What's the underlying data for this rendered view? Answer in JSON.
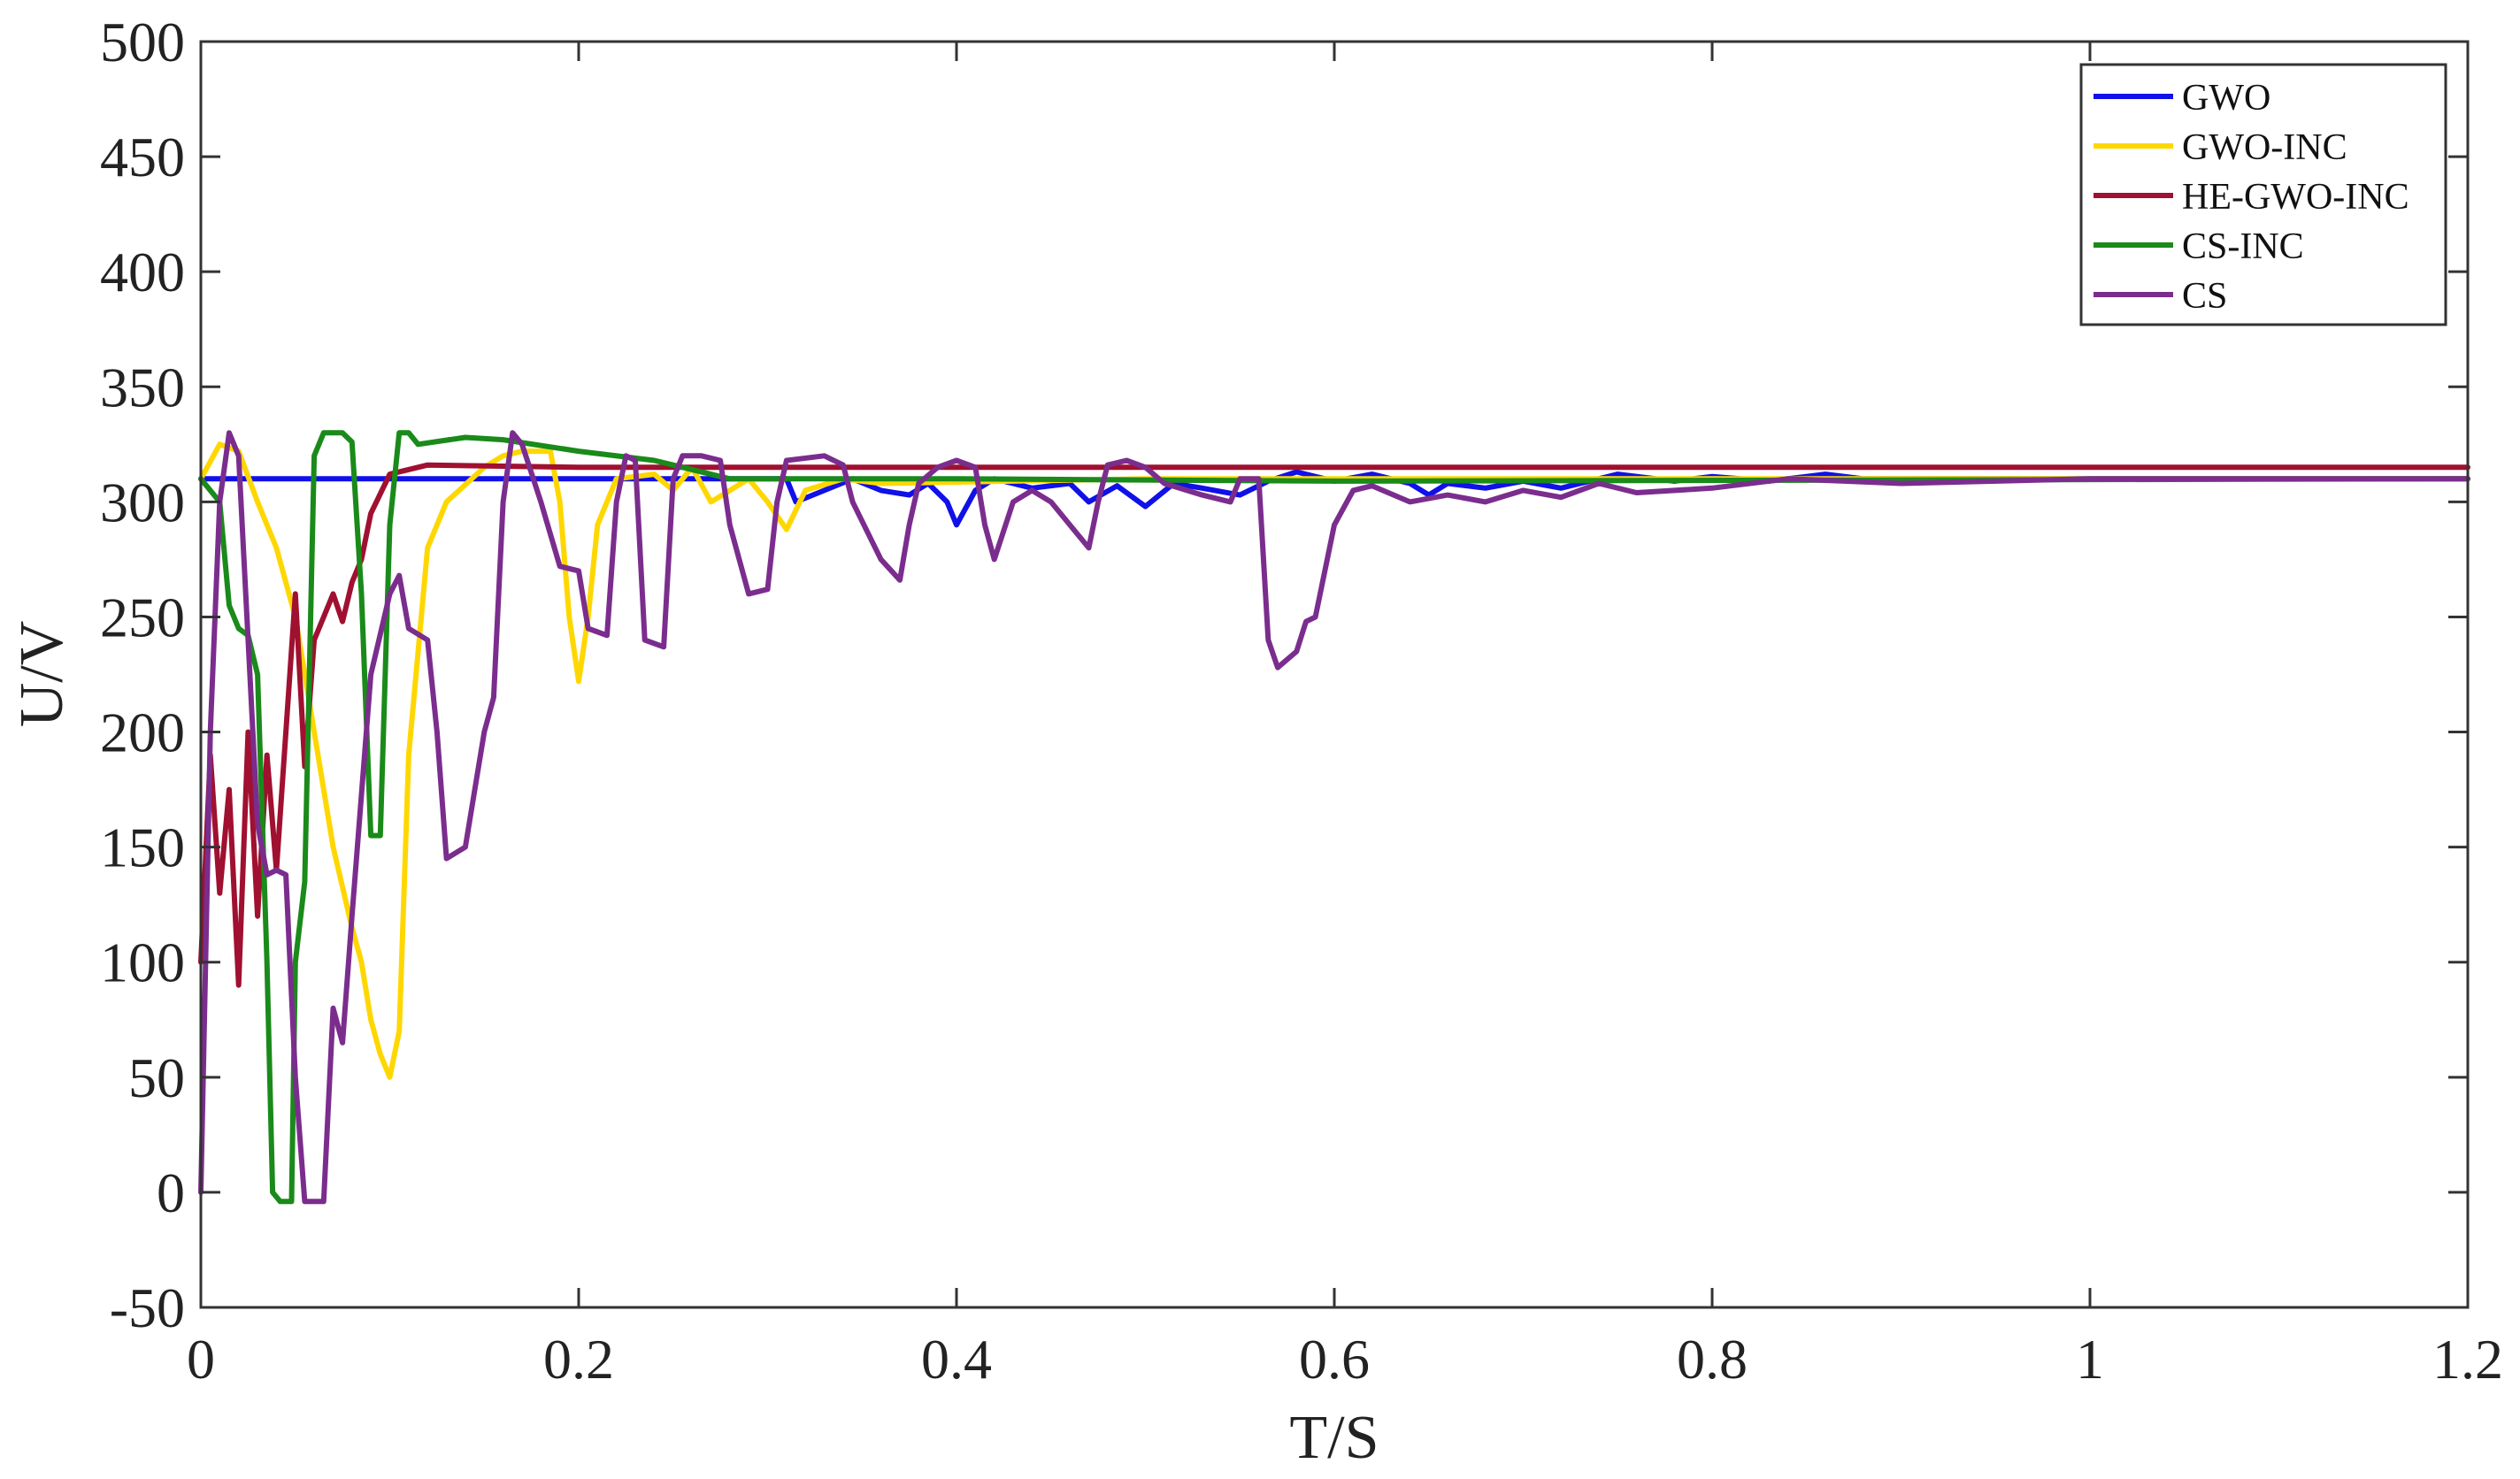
{
  "chart_data": {
    "type": "line",
    "xlabel": "T/S",
    "ylabel": "U/V",
    "xlim": [
      0,
      1.2
    ],
    "ylim": [
      -50,
      500
    ],
    "xticks": [
      0,
      0.2,
      0.4,
      0.6,
      0.8,
      1,
      1.2
    ],
    "xtick_labels": [
      "0",
      "0.2",
      "0.4",
      "0.6",
      "0.8",
      "1",
      "1.2"
    ],
    "yticks": [
      -50,
      0,
      50,
      100,
      150,
      200,
      250,
      300,
      350,
      400,
      450,
      500
    ],
    "ytick_labels": [
      "-50",
      "0",
      "50",
      "100",
      "150",
      "200",
      "250",
      "300",
      "350",
      "400",
      "450",
      "500"
    ],
    "grid": false,
    "legend_position": "top-right",
    "series": [
      {
        "name": "GWO",
        "color": "#1010e8",
        "points": [
          [
            0,
            310
          ],
          [
            0.31,
            310
          ],
          [
            0.315,
            300
          ],
          [
            0.33,
            305
          ],
          [
            0.345,
            310
          ],
          [
            0.36,
            305
          ],
          [
            0.375,
            303
          ],
          [
            0.385,
            308
          ],
          [
            0.395,
            300
          ],
          [
            0.4,
            290
          ],
          [
            0.41,
            305
          ],
          [
            0.42,
            310
          ],
          [
            0.44,
            306
          ],
          [
            0.46,
            308
          ],
          [
            0.47,
            300
          ],
          [
            0.485,
            307
          ],
          [
            0.5,
            298
          ],
          [
            0.515,
            308
          ],
          [
            0.53,
            306
          ],
          [
            0.55,
            303
          ],
          [
            0.565,
            309
          ],
          [
            0.58,
            313
          ],
          [
            0.6,
            309
          ],
          [
            0.62,
            312
          ],
          [
            0.64,
            308
          ],
          [
            0.65,
            303
          ],
          [
            0.66,
            308
          ],
          [
            0.68,
            306
          ],
          [
            0.7,
            309
          ],
          [
            0.72,
            306
          ],
          [
            0.75,
            312
          ],
          [
            0.78,
            309
          ],
          [
            0.8,
            311
          ],
          [
            0.83,
            309
          ],
          [
            0.86,
            312
          ],
          [
            0.88,
            310
          ],
          [
            1.2,
            310
          ]
        ]
      },
      {
        "name": "GWO-INC",
        "color": "#ffd700",
        "points": [
          [
            0,
            310
          ],
          [
            0.01,
            325
          ],
          [
            0.02,
            322
          ],
          [
            0.03,
            300
          ],
          [
            0.04,
            280
          ],
          [
            0.05,
            250
          ],
          [
            0.06,
            200
          ],
          [
            0.07,
            150
          ],
          [
            0.08,
            115
          ],
          [
            0.085,
            100
          ],
          [
            0.09,
            75
          ],
          [
            0.095,
            60
          ],
          [
            0.1,
            50
          ],
          [
            0.105,
            70
          ],
          [
            0.11,
            190
          ],
          [
            0.12,
            280
          ],
          [
            0.13,
            300
          ],
          [
            0.15,
            315
          ],
          [
            0.16,
            320
          ],
          [
            0.17,
            322
          ],
          [
            0.185,
            322
          ],
          [
            0.19,
            300
          ],
          [
            0.195,
            250
          ],
          [
            0.2,
            222
          ],
          [
            0.205,
            250
          ],
          [
            0.21,
            290
          ],
          [
            0.22,
            310
          ],
          [
            0.24,
            312
          ],
          [
            0.25,
            305
          ],
          [
            0.26,
            315
          ],
          [
            0.27,
            300
          ],
          [
            0.28,
            305
          ],
          [
            0.29,
            310
          ],
          [
            0.3,
            300
          ],
          [
            0.31,
            288
          ],
          [
            0.32,
            305
          ],
          [
            0.34,
            310
          ],
          [
            0.36,
            308
          ],
          [
            0.5,
            310
          ],
          [
            1.2,
            310
          ]
        ]
      },
      {
        "name": "HE-GWO-INC",
        "color": "#a01030",
        "points": [
          [
            0,
            100
          ],
          [
            0.005,
            190
          ],
          [
            0.01,
            130
          ],
          [
            0.015,
            175
          ],
          [
            0.02,
            90
          ],
          [
            0.025,
            200
          ],
          [
            0.03,
            120
          ],
          [
            0.035,
            190
          ],
          [
            0.04,
            140
          ],
          [
            0.045,
            200
          ],
          [
            0.05,
            260
          ],
          [
            0.055,
            185
          ],
          [
            0.06,
            240
          ],
          [
            0.065,
            250
          ],
          [
            0.07,
            260
          ],
          [
            0.075,
            248
          ],
          [
            0.08,
            265
          ],
          [
            0.085,
            275
          ],
          [
            0.09,
            295
          ],
          [
            0.1,
            312
          ],
          [
            0.12,
            316
          ],
          [
            0.2,
            315
          ],
          [
            0.4,
            315
          ],
          [
            0.8,
            315
          ],
          [
            1.2,
            315
          ]
        ]
      },
      {
        "name": "CS-INC",
        "color": "#1a8a1a",
        "points": [
          [
            0,
            310
          ],
          [
            0.01,
            300
          ],
          [
            0.015,
            255
          ],
          [
            0.02,
            245
          ],
          [
            0.025,
            242
          ],
          [
            0.03,
            225
          ],
          [
            0.035,
            100
          ],
          [
            0.038,
            0
          ],
          [
            0.042,
            -4
          ],
          [
            0.048,
            -4
          ],
          [
            0.05,
            100
          ],
          [
            0.055,
            135
          ],
          [
            0.06,
            320
          ],
          [
            0.065,
            330
          ],
          [
            0.075,
            330
          ],
          [
            0.08,
            326
          ],
          [
            0.085,
            260
          ],
          [
            0.09,
            155
          ],
          [
            0.095,
            155
          ],
          [
            0.1,
            290
          ],
          [
            0.105,
            330
          ],
          [
            0.11,
            330
          ],
          [
            0.115,
            325
          ],
          [
            0.14,
            328
          ],
          [
            0.16,
            327
          ],
          [
            0.2,
            322
          ],
          [
            0.24,
            318
          ],
          [
            0.28,
            310
          ],
          [
            0.4,
            310
          ],
          [
            0.6,
            309
          ],
          [
            1.2,
            310
          ]
        ]
      },
      {
        "name": "CS",
        "color": "#7b2d8e",
        "points": [
          [
            0,
            0
          ],
          [
            0.005,
            200
          ],
          [
            0.01,
            300
          ],
          [
            0.015,
            330
          ],
          [
            0.02,
            320
          ],
          [
            0.025,
            240
          ],
          [
            0.03,
            160
          ],
          [
            0.035,
            138
          ],
          [
            0.04,
            140
          ],
          [
            0.045,
            138
          ],
          [
            0.05,
            50
          ],
          [
            0.055,
            -4
          ],
          [
            0.065,
            -4
          ],
          [
            0.07,
            80
          ],
          [
            0.075,
            65
          ],
          [
            0.08,
            120
          ],
          [
            0.09,
            225
          ],
          [
            0.1,
            260
          ],
          [
            0.105,
            268
          ],
          [
            0.11,
            245
          ],
          [
            0.12,
            240
          ],
          [
            0.125,
            200
          ],
          [
            0.13,
            145
          ],
          [
            0.14,
            150
          ],
          [
            0.15,
            200
          ],
          [
            0.155,
            215
          ],
          [
            0.16,
            300
          ],
          [
            0.165,
            330
          ],
          [
            0.17,
            325
          ],
          [
            0.18,
            300
          ],
          [
            0.19,
            272
          ],
          [
            0.2,
            270
          ],
          [
            0.205,
            245
          ],
          [
            0.215,
            242
          ],
          [
            0.22,
            300
          ],
          [
            0.225,
            320
          ],
          [
            0.23,
            318
          ],
          [
            0.235,
            240
          ],
          [
            0.245,
            237
          ],
          [
            0.25,
            310
          ],
          [
            0.255,
            320
          ],
          [
            0.265,
            320
          ],
          [
            0.275,
            318
          ],
          [
            0.28,
            290
          ],
          [
            0.29,
            260
          ],
          [
            0.3,
            262
          ],
          [
            0.305,
            300
          ],
          [
            0.31,
            318
          ],
          [
            0.33,
            320
          ],
          [
            0.34,
            316
          ],
          [
            0.345,
            300
          ],
          [
            0.36,
            275
          ],
          [
            0.37,
            266
          ],
          [
            0.375,
            290
          ],
          [
            0.38,
            308
          ],
          [
            0.39,
            315
          ],
          [
            0.4,
            318
          ],
          [
            0.41,
            315
          ],
          [
            0.415,
            290
          ],
          [
            0.42,
            275
          ],
          [
            0.43,
            300
          ],
          [
            0.44,
            305
          ],
          [
            0.45,
            300
          ],
          [
            0.46,
            290
          ],
          [
            0.47,
            280
          ],
          [
            0.475,
            300
          ],
          [
            0.48,
            316
          ],
          [
            0.49,
            318
          ],
          [
            0.5,
            315
          ],
          [
            0.51,
            308
          ],
          [
            0.53,
            303
          ],
          [
            0.545,
            300
          ],
          [
            0.55,
            310
          ],
          [
            0.56,
            310
          ],
          [
            0.565,
            240
          ],
          [
            0.57,
            228
          ],
          [
            0.58,
            235
          ],
          [
            0.585,
            248
          ],
          [
            0.59,
            250
          ],
          [
            0.6,
            290
          ],
          [
            0.61,
            305
          ],
          [
            0.62,
            307
          ],
          [
            0.64,
            300
          ],
          [
            0.66,
            303
          ],
          [
            0.68,
            300
          ],
          [
            0.7,
            305
          ],
          [
            0.72,
            302
          ],
          [
            0.74,
            308
          ],
          [
            0.76,
            304
          ],
          [
            0.8,
            306
          ],
          [
            0.84,
            310
          ],
          [
            0.9,
            308
          ],
          [
            1.0,
            310
          ],
          [
            1.2,
            310
          ]
        ]
      }
    ]
  }
}
